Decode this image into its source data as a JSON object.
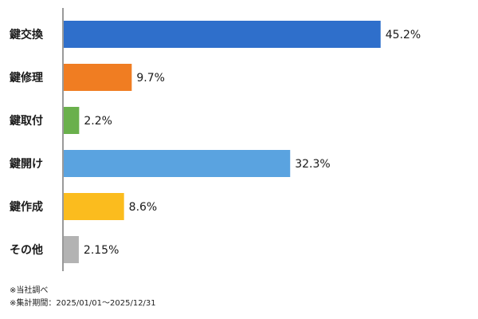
{
  "chart_data": {
    "type": "bar",
    "orientation": "horizontal",
    "categories": [
      "鍵交換",
      "鍵修理",
      "鍵取付",
      "鍵開け",
      "鍵作成",
      "その他"
    ],
    "values": [
      45.2,
      9.7,
      2.2,
      32.3,
      8.6,
      2.15
    ],
    "value_labels": [
      "45.2%",
      "9.7%",
      "2.2%",
      "32.3%",
      "8.6%",
      "2.15%"
    ],
    "colors": [
      "#2f6fcb",
      "#f07d22",
      "#6ab04c",
      "#5aa3e0",
      "#fbbc1e",
      "#b3b3b3"
    ],
    "unit": "%",
    "xlim": [
      0,
      50
    ],
    "grid": false,
    "legend": "none"
  },
  "notes": {
    "source": "※当社調べ",
    "period": "※集計期間：2025/01/01～2025/12/31"
  }
}
